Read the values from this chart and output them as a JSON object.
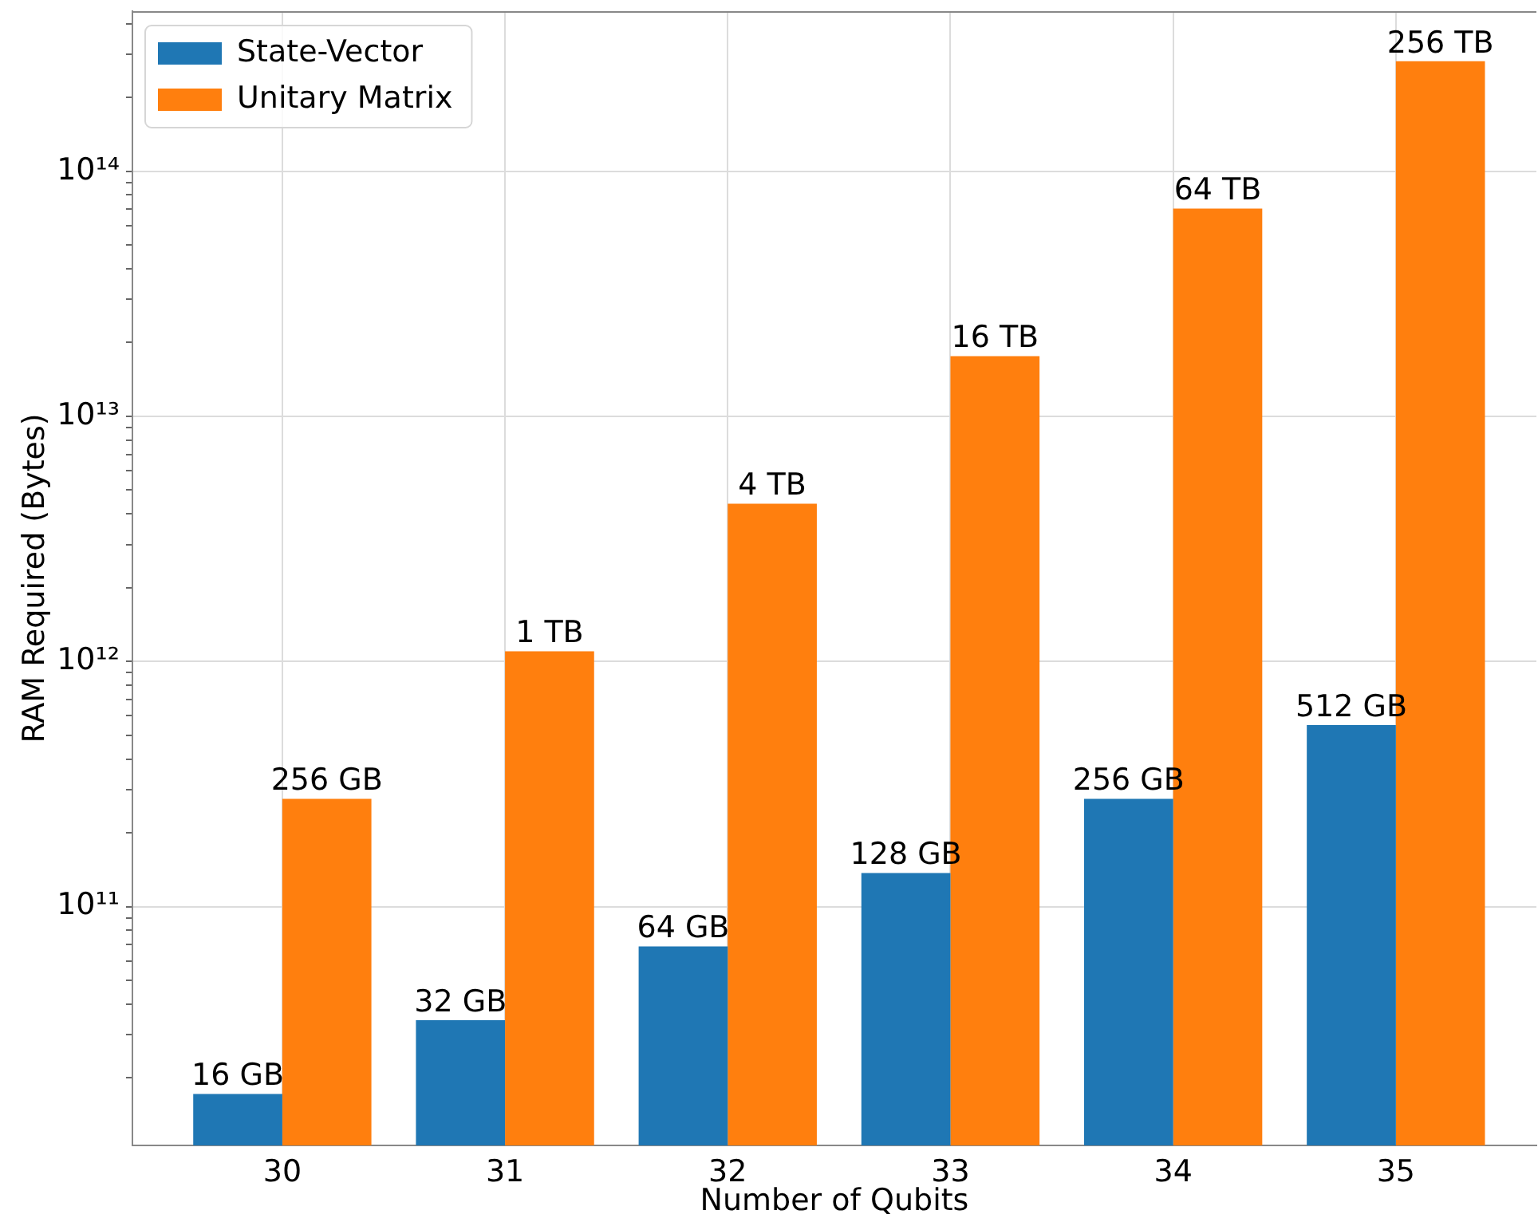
{
  "chart_data": {
    "type": "bar",
    "xlabel": "Number of Qubits",
    "ylabel": "RAM Required (Bytes)",
    "categories": [
      "30",
      "31",
      "32",
      "33",
      "34",
      "35"
    ],
    "series": [
      {
        "name": "State-Vector",
        "color": "#1f77b4",
        "values": [
          17200000000,
          34400000000,
          68700000000,
          137000000000,
          275000000000,
          550000000000
        ]
      },
      {
        "name": "Unitary Matrix",
        "color": "#ff7f0e",
        "values": [
          275000000000,
          1100000000000,
          4400000000000,
          17600000000000,
          70400000000000,
          281000000000000
        ]
      }
    ],
    "annotations": [
      {
        "text": "16 GB",
        "x": "30",
        "y": 17200000000
      },
      {
        "text": "32 GB",
        "x": "31",
        "y": 34400000000
      },
      {
        "text": "64 GB",
        "x": "32",
        "y": 68700000000
      },
      {
        "text": "128 GB",
        "x": "33",
        "y": 137000000000
      },
      {
        "text": "256 GB",
        "x": "34",
        "y": 275000000000
      },
      {
        "text": "512 GB",
        "x": "35",
        "y": 550000000000
      },
      {
        "text": "256 GB",
        "x": "30",
        "y": 275000000000
      },
      {
        "text": "1 TB",
        "x": "31",
        "y": 1100000000000
      },
      {
        "text": "4 TB",
        "x": "32",
        "y": 4400000000000
      },
      {
        "text": "16 TB",
        "x": "33",
        "y": 17600000000000
      },
      {
        "text": "64 TB",
        "x": "34",
        "y": 70400000000000
      },
      {
        "text": "256 TB",
        "x": "35",
        "y": 281000000000000
      }
    ],
    "log": "y",
    "ylim": [
      10600000000,
      450000000000000
    ],
    "yticks": [
      {
        "value": 20000000000,
        "label": null
      },
      {
        "value": 30000000000,
        "label": null
      },
      {
        "value": 40000000000,
        "label": null
      },
      {
        "value": 50000000000,
        "label": null
      },
      {
        "value": 60000000000,
        "label": null
      },
      {
        "value": 70000000000,
        "label": null
      },
      {
        "value": 80000000000,
        "label": null
      },
      {
        "value": 90000000000,
        "label": null
      },
      {
        "value": 100000000000,
        "label": "10¹¹"
      },
      {
        "value": 200000000000,
        "label": null
      },
      {
        "value": 300000000000,
        "label": null
      },
      {
        "value": 400000000000,
        "label": null
      },
      {
        "value": 500000000000,
        "label": null
      },
      {
        "value": 600000000000,
        "label": null
      },
      {
        "value": 700000000000,
        "label": null
      },
      {
        "value": 800000000000,
        "label": null
      },
      {
        "value": 900000000000,
        "label": null
      },
      {
        "value": 1000000000000,
        "label": "10¹²"
      },
      {
        "value": 2000000000000,
        "label": null
      },
      {
        "value": 3000000000000,
        "label": null
      },
      {
        "value": 4000000000000,
        "label": null
      },
      {
        "value": 5000000000000,
        "label": null
      },
      {
        "value": 6000000000000,
        "label": null
      },
      {
        "value": 7000000000000,
        "label": null
      },
      {
        "value": 8000000000000,
        "label": null
      },
      {
        "value": 9000000000000,
        "label": null
      },
      {
        "value": 10000000000000,
        "label": "10¹³"
      },
      {
        "value": 20000000000000,
        "label": null
      },
      {
        "value": 30000000000000,
        "label": null
      },
      {
        "value": 40000000000000,
        "label": null
      },
      {
        "value": 50000000000000,
        "label": null
      },
      {
        "value": 60000000000000,
        "label": null
      },
      {
        "value": 70000000000000,
        "label": null
      },
      {
        "value": 80000000000000,
        "label": null
      },
      {
        "value": 90000000000000,
        "label": null
      },
      {
        "value": 100000000000000,
        "label": "10¹⁴"
      },
      {
        "value": 200000000000000,
        "label": null
      },
      {
        "value": 300000000000000,
        "label": null
      },
      {
        "value": 400000000000000,
        "label": null
      }
    ],
    "grid": true,
    "legend": "top left"
  }
}
